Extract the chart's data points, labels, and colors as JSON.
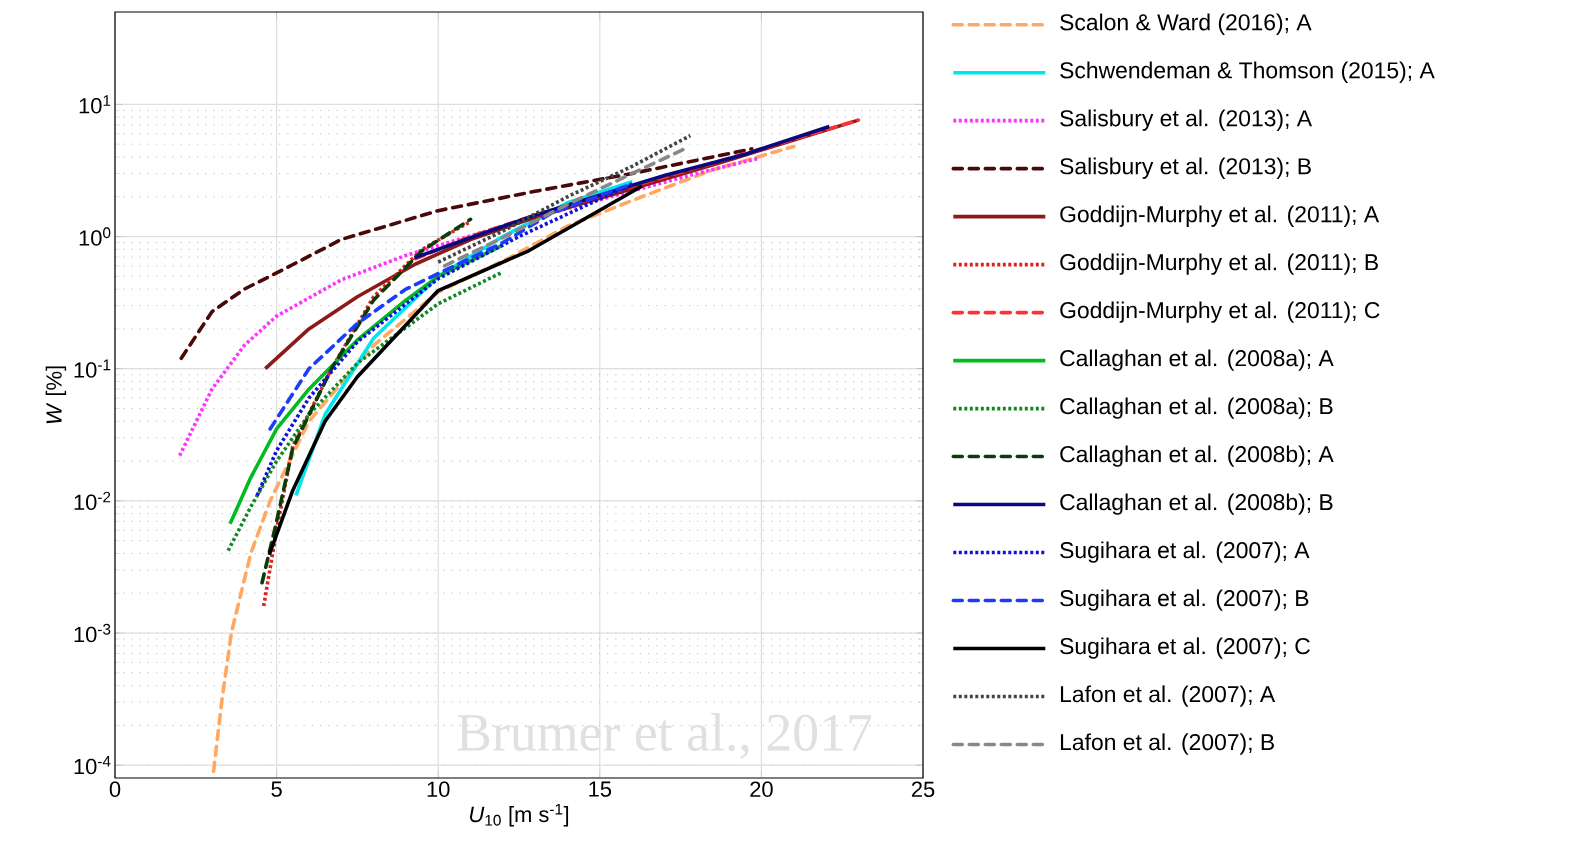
{
  "chart_data": {
    "type": "line",
    "xlabel": "*U*$_{10}$ [m s$^{-1}$]",
    "ylabel": "*W* [%]",
    "log": "y",
    "grid": true,
    "legend": "right",
    "xlim": [
      0,
      25
    ],
    "xticks": [
      0,
      5,
      10,
      15,
      20,
      25
    ],
    "ylim": [
      8e-05,
      50
    ],
    "yticks": [
      {
        "value": 0.0001,
        "label": "10$^{-4}$"
      },
      {
        "value": 0.001,
        "label": "10$^{-3}$"
      },
      {
        "value": 0.01,
        "label": "10$^{-2}$"
      },
      {
        "value": 0.1,
        "label": "10$^{-1}$"
      },
      {
        "value": 1,
        "label": "10$^{0}$"
      },
      {
        "value": 10,
        "label": "10$^{1}$"
      }
    ],
    "annotations": [
      "Brumer et al., 2017"
    ],
    "series": [
      {
        "name": "Scalon & Ward (2016); A",
        "color": "#ffa864",
        "line_style": "dashed",
        "x": [
          3.05,
          3.3,
          3.6,
          4.2,
          4.8,
          6,
          8,
          10,
          12.2,
          14,
          16.3,
          18.5,
          21
        ],
        "values": [
          9e-05,
          0.0003,
          0.001,
          0.004,
          0.01,
          0.04,
          0.15,
          0.38,
          0.69,
          1.2,
          2.0,
          3.2,
          4.8
        ]
      },
      {
        "name": "Schwendeman & Thomson (2015); A",
        "color": "#00e5ee",
        "line_style": "solid",
        "x": [
          5.6,
          6.5,
          8,
          10,
          12,
          14,
          16
        ],
        "values": [
          0.011,
          0.045,
          0.17,
          0.5,
          1.0,
          1.8,
          2.6
        ]
      },
      {
        "name": "Salisbury et al. (2013); A",
        "color": "#ff33ff",
        "line_style": "dotted",
        "x": [
          2.0,
          3,
          4,
          5,
          7,
          9,
          12,
          15,
          18,
          19.9
        ],
        "values": [
          0.022,
          0.07,
          0.15,
          0.25,
          0.47,
          0.72,
          1.2,
          1.9,
          3.0,
          3.9
        ]
      },
      {
        "name": "Salisbury et al. (2013); B",
        "color": "#4a0a0a",
        "line_style": "dashed",
        "x": [
          2.05,
          3,
          4,
          5,
          7,
          10,
          13,
          16,
          19.7
        ],
        "values": [
          0.12,
          0.27,
          0.4,
          0.53,
          0.95,
          1.57,
          2.2,
          3.0,
          4.6
        ]
      },
      {
        "name": "Goddijn-Murphy et al. (2011); A",
        "color": "#8b1a1a",
        "line_style": "solid",
        "x": [
          4.65,
          6,
          7.5,
          9.3,
          11,
          13,
          16,
          19,
          23
        ],
        "values": [
          0.1,
          0.2,
          0.35,
          0.62,
          0.95,
          1.4,
          2.3,
          3.8,
          7.6
        ]
      },
      {
        "name": "Goddijn-Murphy et al. (2011); B",
        "color": "#dd2222",
        "line_style": "dotted",
        "x": [
          4.6,
          5.0,
          5.5,
          6.7,
          8,
          9.5,
          11
        ],
        "values": [
          0.0016,
          0.006,
          0.026,
          0.1,
          0.35,
          0.8,
          1.3
        ]
      },
      {
        "name": "Goddijn-Murphy et al. (2011); C",
        "color": "#ff3333",
        "line_style": "dashed",
        "x": [
          9.3,
          11,
          13,
          16,
          19,
          23
        ],
        "values": [
          0.68,
          1.0,
          1.45,
          2.4,
          3.9,
          7.6
        ]
      },
      {
        "name": "Callaghan et al. (2008a); A",
        "color": "#00bb22",
        "line_style": "solid",
        "x": [
          3.56,
          4.2,
          5,
          6,
          7.5,
          9,
          10,
          12
        ],
        "values": [
          0.0067,
          0.015,
          0.035,
          0.07,
          0.165,
          0.33,
          0.5,
          0.86
        ]
      },
      {
        "name": "Callaghan et al. (2008a); B",
        "color": "#118822",
        "line_style": "dotted",
        "x": [
          3.5,
          4.2,
          5,
          6,
          7.5,
          10,
          12
        ],
        "values": [
          0.0042,
          0.009,
          0.02,
          0.045,
          0.11,
          0.31,
          0.54
        ]
      },
      {
        "name": "Callaghan et al. (2008b); A",
        "color": "#0a3d0a",
        "line_style": "dashed",
        "x": [
          4.55,
          5,
          5.5,
          6.7,
          8,
          9.5,
          11
        ],
        "values": [
          0.0024,
          0.007,
          0.025,
          0.1,
          0.33,
          0.78,
          1.35
        ]
      },
      {
        "name": "Callaghan et al. (2008b); B",
        "color": "#0a0a80",
        "line_style": "solid",
        "x": [
          9.27,
          11,
          13,
          15,
          17,
          19.5,
          22.1
        ],
        "values": [
          0.69,
          0.98,
          1.45,
          2.05,
          2.9,
          4.2,
          6.8
        ]
      },
      {
        "name": "Sugihara et al. (2007); A",
        "color": "#1010dd",
        "line_style": "dotted",
        "x": [
          4.4,
          5,
          6,
          7.5,
          10,
          12.5,
          16
        ],
        "values": [
          0.011,
          0.024,
          0.06,
          0.16,
          0.48,
          1.0,
          2.5
        ]
      },
      {
        "name": "Sugihara et al. (2007); B",
        "color": "#1a3cff",
        "line_style": "dashed",
        "x": [
          4.8,
          6,
          7.5,
          9,
          10.5,
          12,
          13.5,
          16
        ],
        "values": [
          0.035,
          0.1,
          0.22,
          0.4,
          0.6,
          0.9,
          1.5,
          2.5
        ]
      },
      {
        "name": "Sugihara et al. (2007); C",
        "color": "#000000",
        "line_style": "solid",
        "x": [
          4.77,
          5.5,
          6.5,
          7.5,
          10,
          12.8,
          16.3
        ],
        "values": [
          0.0039,
          0.012,
          0.04,
          0.087,
          0.39,
          0.78,
          2.4
        ]
      },
      {
        "name": "Lafon et al. (2007); A",
        "color": "#444444",
        "line_style": "dotted",
        "x": [
          10,
          12,
          14,
          16,
          17.8
        ],
        "values": [
          0.64,
          1.1,
          2.0,
          3.4,
          5.8
        ]
      },
      {
        "name": "Lafon et al. (2007); B",
        "color": "#888888",
        "line_style": "dashed",
        "x": [
          10.2,
          12,
          14,
          16,
          17.7
        ],
        "values": [
          0.6,
          0.98,
          1.75,
          3.0,
          4.7
        ]
      }
    ]
  }
}
